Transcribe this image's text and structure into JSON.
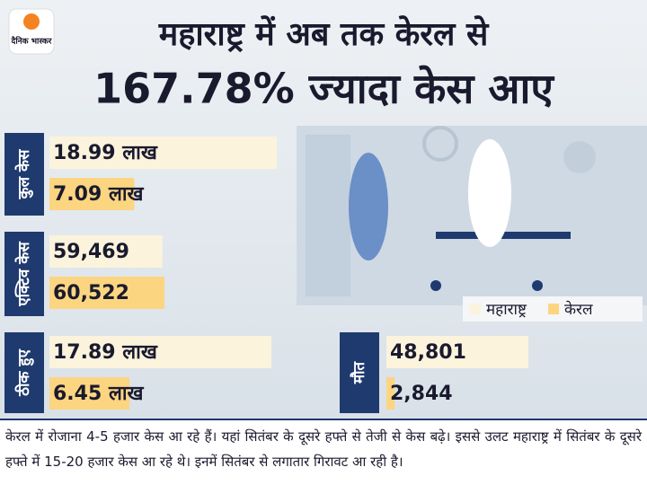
{
  "header": {
    "logo": "दैनिक भास्कर",
    "title_line1": "महाराष्ट्र में अब तक केरल से",
    "title_line2": "167.78% ज्यादा केस आए"
  },
  "legend": [
    {
      "name": "महाराष्ट्र",
      "color": "#fbf3dc"
    },
    {
      "name": "केरल",
      "color": "#fcd581"
    }
  ],
  "chart_data": [
    {
      "type": "bar",
      "title": "कुल केस",
      "values": [
        18.99,
        7.09
      ],
      "value_labels": [
        "18.99 लाख",
        "7.09 लाख"
      ]
    },
    {
      "type": "bar",
      "title": "एक्टिव केस",
      "values": [
        59469,
        60522
      ],
      "value_labels": [
        "59,469",
        "60,522"
      ]
    },
    {
      "type": "bar",
      "title": "ठीक हुए",
      "values": [
        17.89,
        6.45
      ],
      "value_labels": [
        "17.89 लाख",
        "6.45 लाख"
      ]
    },
    {
      "type": "bar",
      "title": "मौत",
      "values": [
        48801,
        2844
      ],
      "value_labels": [
        "48,801",
        "2,844"
      ]
    }
  ],
  "footer": {
    "text": "केरल में रोजाना 4-5 हजार केस आ रहे हैं। यहां सितंबर के दूसरे हफ्ते से तेजी से केस बढ़े। इससे उलट महाराष्ट्र में सितंबर के दूसरे हफ्ते में 15-20 हजार केस आ रहे थे। इनमें सितंबर से लगातार गिरावट आ रही है।"
  }
}
